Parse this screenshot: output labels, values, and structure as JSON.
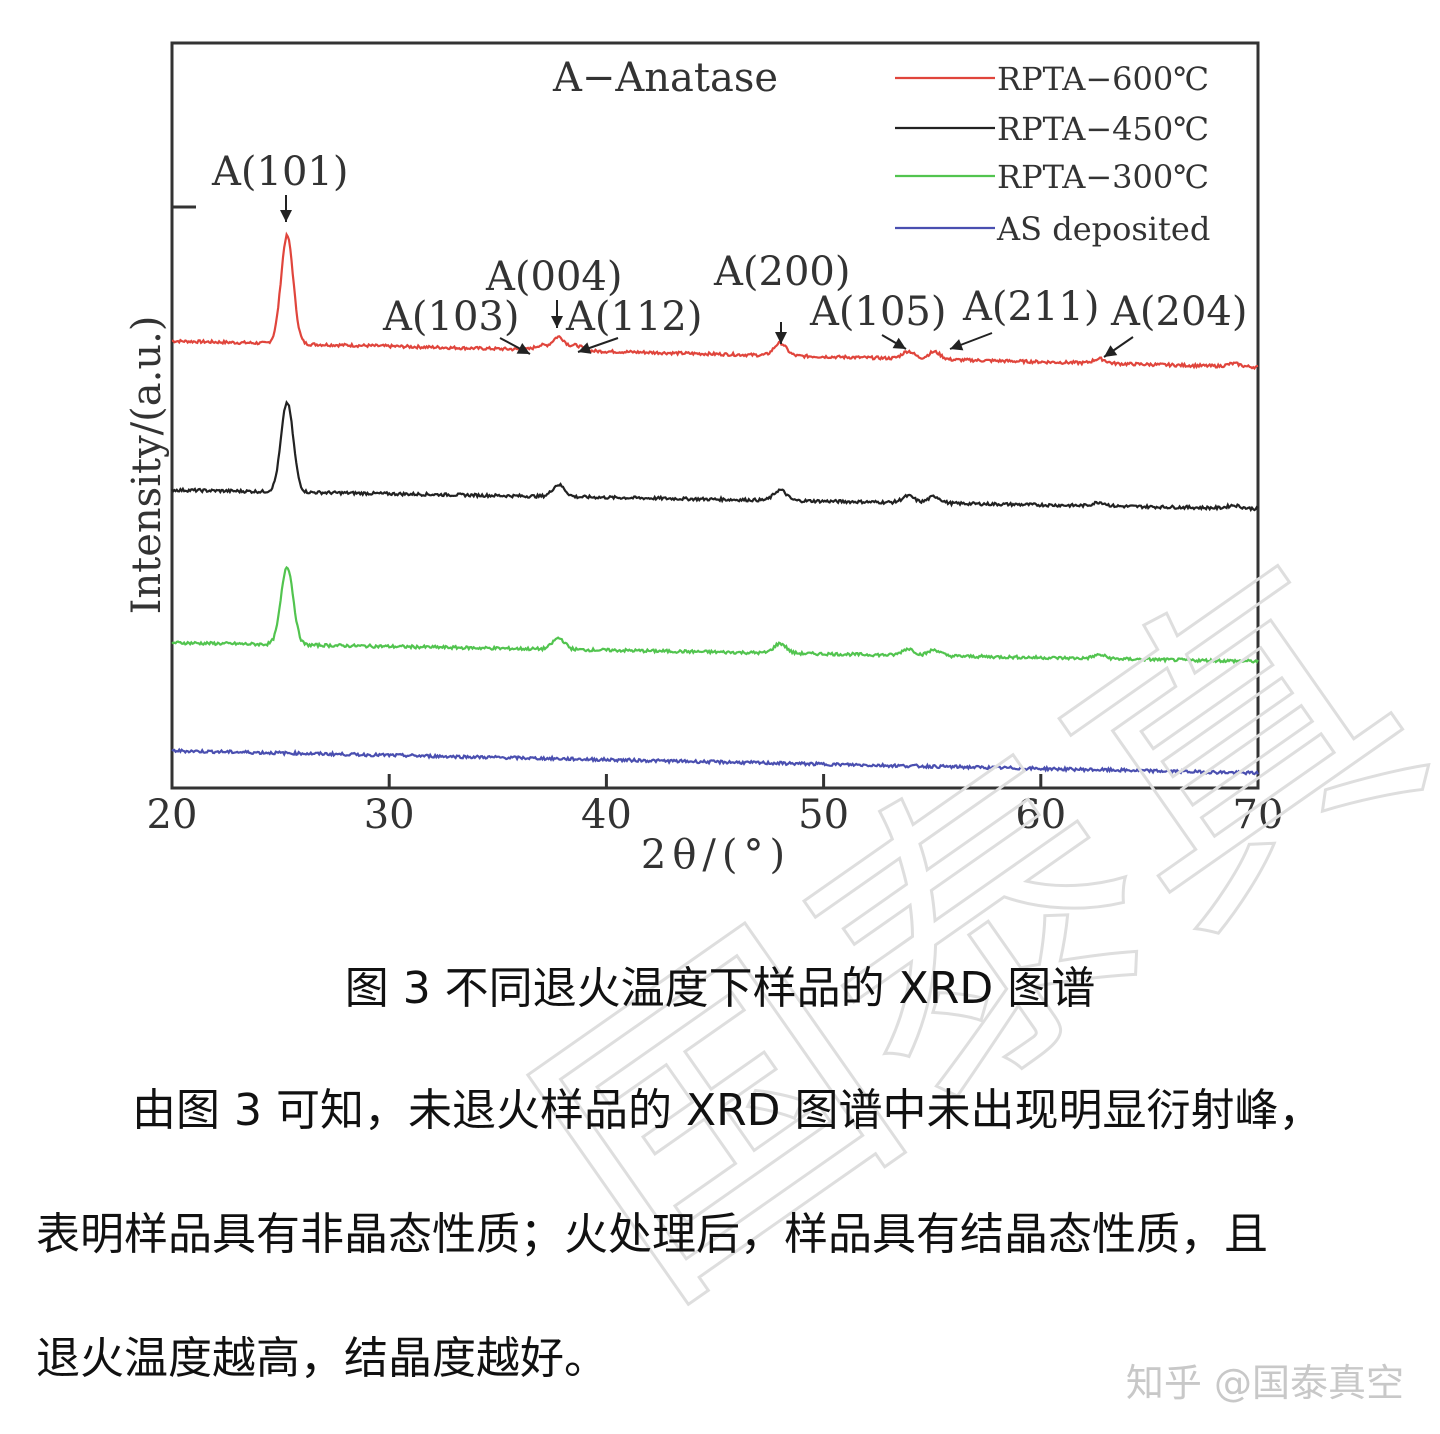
{
  "figure": {
    "annotation_title": "A−Anatase",
    "caption": "图 3 不同退火温度下样品的 XRD 图谱"
  },
  "chart_data": {
    "type": "line",
    "xlabel": "2θ/(°)",
    "ylabel": "Intensity/(a.u.)",
    "xlim": [
      20,
      70
    ],
    "x_ticks": [
      "20",
      "30",
      "40",
      "50",
      "60",
      "70"
    ],
    "legend_position": "top-right",
    "series": [
      {
        "name": "RPTA−600℃",
        "color": "#e0453c",
        "baseline_rel": 0.6,
        "baseline_drop": 0.035,
        "peaks": [
          {
            "x": 25.3,
            "height": 0.145
          },
          {
            "x": 37.0,
            "height": 0.006
          },
          {
            "x": 37.8,
            "height": 0.018
          },
          {
            "x": 38.6,
            "height": 0.007
          },
          {
            "x": 48.0,
            "height": 0.017
          },
          {
            "x": 53.9,
            "height": 0.01
          },
          {
            "x": 55.1,
            "height": 0.01
          },
          {
            "x": 62.7,
            "height": 0.006
          },
          {
            "x": 68.9,
            "height": 0.004
          }
        ]
      },
      {
        "name": "RPTA−450℃",
        "color": "#222222",
        "baseline_rel": 0.4,
        "baseline_drop": 0.025,
        "peaks": [
          {
            "x": 25.3,
            "height": 0.12
          },
          {
            "x": 37.8,
            "height": 0.016
          },
          {
            "x": 48.0,
            "height": 0.014
          },
          {
            "x": 53.9,
            "height": 0.009
          },
          {
            "x": 55.1,
            "height": 0.009
          },
          {
            "x": 62.7,
            "height": 0.005
          },
          {
            "x": 68.9,
            "height": 0.004
          }
        ]
      },
      {
        "name": "RPTA−300℃",
        "color": "#52c44f",
        "baseline_rel": 0.195,
        "baseline_drop": 0.025,
        "peaks": [
          {
            "x": 25.3,
            "height": 0.105
          },
          {
            "x": 37.8,
            "height": 0.015
          },
          {
            "x": 48.0,
            "height": 0.013
          },
          {
            "x": 53.9,
            "height": 0.009
          },
          {
            "x": 55.1,
            "height": 0.008
          },
          {
            "x": 62.7,
            "height": 0.005
          }
        ]
      },
      {
        "name": "AS deposited",
        "color": "#4a4fb0",
        "baseline_rel": 0.05,
        "baseline_drop": 0.03,
        "peaks": []
      }
    ],
    "annotations": [
      {
        "label": "A(101)",
        "x": 25.3
      },
      {
        "label": "A(103)",
        "x": 37.0
      },
      {
        "label": "A(004)",
        "x": 37.8
      },
      {
        "label": "A(112)",
        "x": 38.6
      },
      {
        "label": "A(200)",
        "x": 48.0
      },
      {
        "label": "A(105)",
        "x": 53.9
      },
      {
        "label": "A(211)",
        "x": 55.1
      },
      {
        "label": "A(204)",
        "x": 62.7
      }
    ]
  },
  "paragraph": {
    "line1": "由图 3 可知，未退火样品的 XRD 图谱中未出现明显衍射峰，",
    "line2": "表明样品具有非晶态性质；火处理后，样品具有结晶态性质，且",
    "line3": "退火温度越高，结晶度越好。"
  },
  "credit": "知乎 @国泰真空",
  "watermark": "国泰真"
}
